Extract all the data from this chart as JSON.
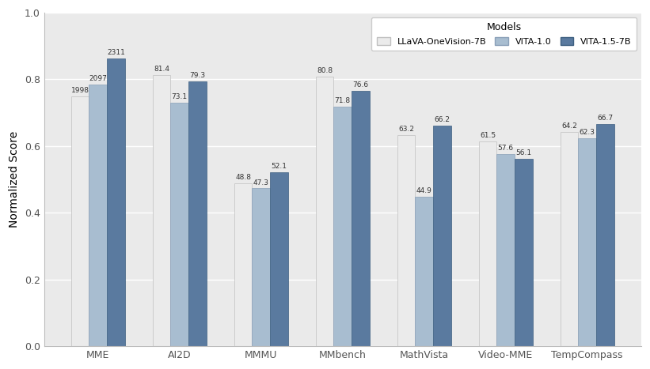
{
  "categories": [
    "MME",
    "AI2D",
    "MMMU",
    "MMbench",
    "MathVista",
    "Video-MME",
    "TempCompass"
  ],
  "models": [
    "LLaVA-OneVision-7B",
    "VITA-1.0",
    "VITA-1.5-7B"
  ],
  "normalized_values": {
    "LLaVA-OneVision-7B": [
      0.748,
      0.814,
      0.488,
      0.808,
      0.632,
      0.615,
      0.642
    ],
    "VITA-1.0": [
      0.7839,
      0.731,
      0.473,
      0.718,
      0.449,
      0.576,
      0.623
    ],
    "VITA-1.5-7B": [
      0.8636,
      0.793,
      0.521,
      0.766,
      0.662,
      0.561,
      0.667
    ]
  },
  "bar_colors": {
    "LLaVA-OneVision-7B": "#ebebeb",
    "VITA-1.0": "#a8bdd0",
    "VITA-1.5-7B": "#5a7a9f"
  },
  "bar_edgecolors": {
    "LLaVA-OneVision-7B": "#c0c0c0",
    "VITA-1.0": "#8aa0b8",
    "VITA-1.5-7B": "#3d5f80"
  },
  "ylabel": "Normalized Score",
  "legend_title": "Models",
  "ylim": [
    0.0,
    1.0
  ],
  "yticks": [
    0.0,
    0.2,
    0.4,
    0.6,
    0.8,
    1.0
  ],
  "figure_bg": "#ffffff",
  "axes_bg": "#eaeaea",
  "grid_color": "#ffffff",
  "bar_width": 0.22,
  "display_labels": {
    "LLaVA-OneVision-7B": [
      "1998",
      "81.4",
      "48.8",
      "80.8",
      "63.2",
      "61.5",
      "64.2"
    ],
    "VITA-1.0": [
      "2097",
      "73.1",
      "47.3",
      "71.8",
      "44.9",
      "57.6",
      "62.3"
    ],
    "VITA-1.5-7B": [
      "2311",
      "79.3",
      "52.1",
      "76.6",
      "66.2",
      "56.1",
      "66.7"
    ]
  }
}
